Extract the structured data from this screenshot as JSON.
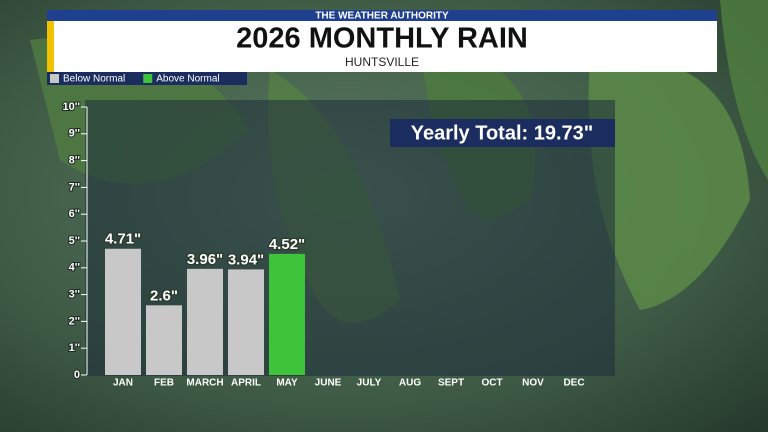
{
  "chart_data": {
    "type": "bar",
    "header": "THE WEATHER AUTHORITY",
    "title": "2026 MONTHLY RAIN",
    "subtitle": "HUNTSVILLE",
    "annotation": "Yearly Total: 19.73\"",
    "categories": [
      "JAN",
      "FEB",
      "MARCH",
      "APRIL",
      "MAY",
      "JUNE",
      "JULY",
      "AUG",
      "SEPT",
      "OCT",
      "NOV",
      "DEC"
    ],
    "series": [
      {
        "name": "Below Normal",
        "color": "#c8c8c8",
        "values": [
          4.71,
          2.6,
          3.96,
          3.94,
          null,
          null,
          null,
          null,
          null,
          null,
          null,
          null
        ],
        "value_labels": [
          "4.71\"",
          "2.6\"",
          "3.96\"",
          "3.94\"",
          null,
          null,
          null,
          null,
          null,
          null,
          null,
          null
        ]
      },
      {
        "name": "Above Normal",
        "color": "#3ec43a",
        "values": [
          null,
          null,
          null,
          null,
          4.52,
          null,
          null,
          null,
          null,
          null,
          null,
          null
        ],
        "value_labels": [
          null,
          null,
          null,
          null,
          "4.52\"",
          null,
          null,
          null,
          null,
          null,
          null,
          null
        ]
      }
    ],
    "ylim": [
      0,
      10
    ],
    "yticks": [
      0,
      {
        "value": 1,
        "label": "1''"
      },
      {
        "value": 2,
        "label": "2''"
      },
      {
        "value": 3,
        "label": "3''"
      },
      {
        "value": 4,
        "label": "4''"
      },
      {
        "value": 5,
        "label": "5''"
      },
      {
        "value": 6,
        "label": "6''"
      },
      {
        "value": 7,
        "label": "7''"
      },
      {
        "value": 8,
        "label": "8''"
      },
      {
        "value": 9,
        "label": "9''"
      },
      {
        "value": 10,
        "label": "10''"
      }
    ]
  }
}
